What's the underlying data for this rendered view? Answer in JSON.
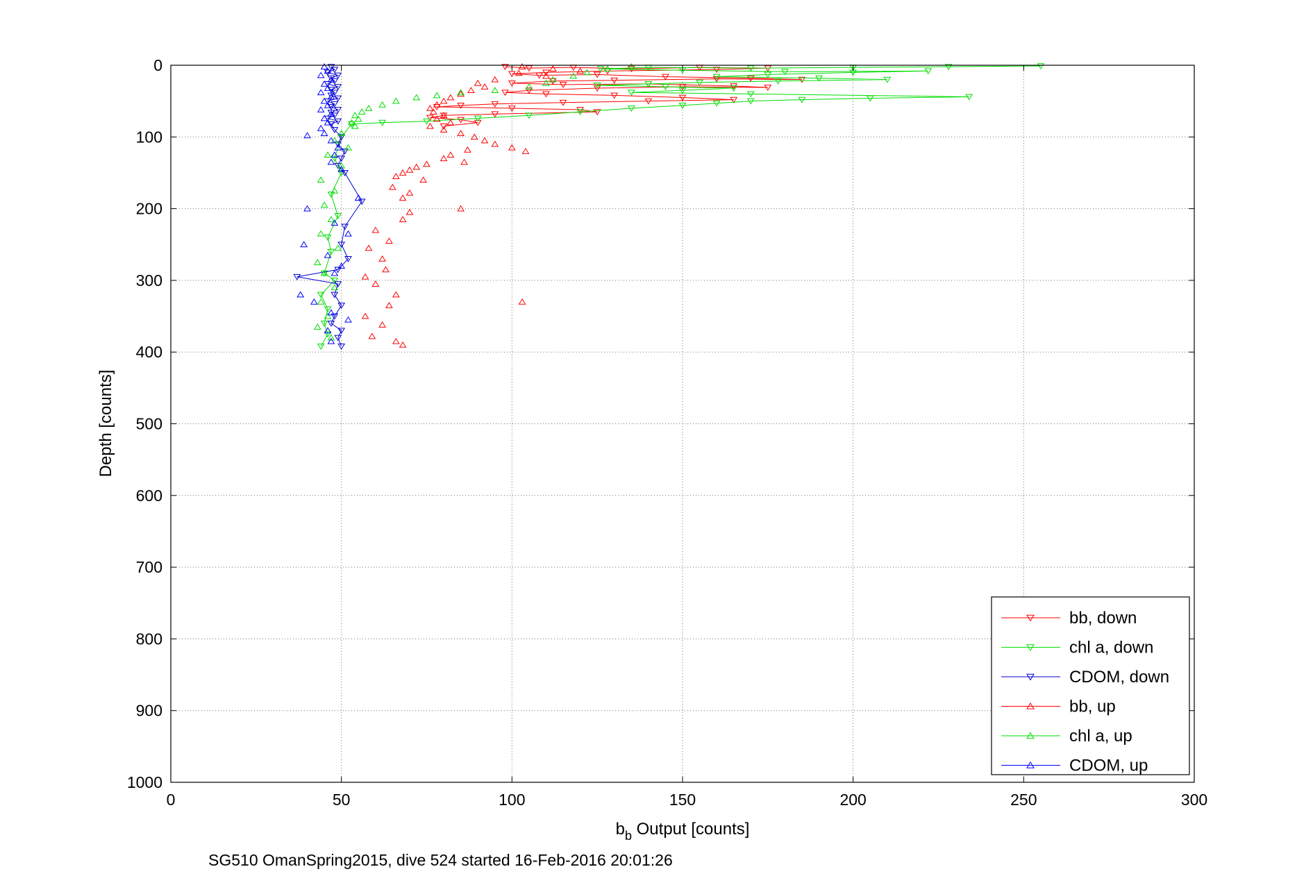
{
  "chart_data": {
    "type": "line",
    "xlabel_main": "b",
    "xlabel_sub": "b",
    "xlabel_rest": " Output [counts]",
    "ylabel": "Depth [counts]",
    "caption": "SG510 OmanSpring2015, dive 524 started 16-Feb-2016 20:01:26",
    "xlim": [
      0,
      300
    ],
    "ylim": [
      0,
      1000
    ],
    "y_reversed": true,
    "grid": true,
    "legend_position": "bottom-right",
    "x_ticks": [
      "0",
      "50",
      "100",
      "150",
      "200",
      "250",
      "300"
    ],
    "y_ticks": [
      "0",
      "100",
      "200",
      "300",
      "400",
      "500",
      "600",
      "700",
      "800",
      "900",
      "1000"
    ],
    "series": [
      {
        "name": "bb, down",
        "color": "#ff0000",
        "marker": "triangle-down",
        "connected": true,
        "points": [
          [
            98,
            2
          ],
          [
            105,
            4
          ],
          [
            118,
            3
          ],
          [
            135,
            5
          ],
          [
            155,
            3
          ],
          [
            175,
            4
          ],
          [
            160,
            6
          ],
          [
            128,
            8
          ],
          [
            110,
            10
          ],
          [
            100,
            12
          ],
          [
            108,
            14
          ],
          [
            125,
            13
          ],
          [
            145,
            16
          ],
          [
            170,
            18
          ],
          [
            185,
            20
          ],
          [
            160,
            19
          ],
          [
            130,
            21
          ],
          [
            112,
            22
          ],
          [
            100,
            25
          ],
          [
            115,
            27
          ],
          [
            140,
            26
          ],
          [
            165,
            29
          ],
          [
            175,
            31
          ],
          [
            150,
            30
          ],
          [
            125,
            32
          ],
          [
            105,
            35
          ],
          [
            98,
            38
          ],
          [
            110,
            40
          ],
          [
            130,
            42
          ],
          [
            150,
            45
          ],
          [
            165,
            48
          ],
          [
            140,
            50
          ],
          [
            115,
            52
          ],
          [
            95,
            54
          ],
          [
            85,
            56
          ],
          [
            78,
            58
          ],
          [
            100,
            60
          ],
          [
            120,
            62
          ],
          [
            125,
            65
          ],
          [
            95,
            68
          ],
          [
            80,
            70
          ],
          [
            76,
            73
          ],
          [
            85,
            76
          ],
          [
            90,
            80
          ],
          [
            80,
            85
          ]
        ]
      },
      {
        "name": "chl a, down",
        "color": "#00dd00",
        "marker": "triangle-down",
        "connected": true,
        "points": [
          [
            255,
            1
          ],
          [
            228,
            2
          ],
          [
            200,
            3
          ],
          [
            170,
            4
          ],
          [
            140,
            3
          ],
          [
            126,
            5
          ],
          [
            150,
            7
          ],
          [
            180,
            9
          ],
          [
            222,
            8
          ],
          [
            200,
            10
          ],
          [
            175,
            13
          ],
          [
            160,
            16
          ],
          [
            190,
            18
          ],
          [
            210,
            20
          ],
          [
            178,
            22
          ],
          [
            155,
            24
          ],
          [
            140,
            26
          ],
          [
            125,
            28
          ],
          [
            145,
            30
          ],
          [
            165,
            32
          ],
          [
            150,
            35
          ],
          [
            135,
            38
          ],
          [
            170,
            40
          ],
          [
            234,
            44
          ],
          [
            205,
            46
          ],
          [
            185,
            48
          ],
          [
            170,
            50
          ],
          [
            160,
            53
          ],
          [
            150,
            56
          ],
          [
            135,
            60
          ],
          [
            120,
            65
          ],
          [
            105,
            70
          ],
          [
            90,
            74
          ],
          [
            75,
            78
          ],
          [
            62,
            80
          ],
          [
            53,
            82
          ],
          [
            50,
            100
          ],
          [
            48,
            130
          ],
          [
            50,
            150
          ],
          [
            47,
            180
          ],
          [
            49,
            210
          ],
          [
            46,
            240
          ],
          [
            47,
            260
          ],
          [
            45,
            290
          ],
          [
            48,
            300
          ],
          [
            44,
            320
          ],
          [
            46,
            340
          ],
          [
            45,
            360
          ],
          [
            46,
            375
          ],
          [
            44,
            392
          ]
        ]
      },
      {
        "name": "CDOM, down",
        "color": "#0000cc",
        "marker": "triangle-down",
        "connected": true,
        "points": [
          [
            47,
            2
          ],
          [
            48,
            6
          ],
          [
            46,
            10
          ],
          [
            49,
            14
          ],
          [
            47,
            18
          ],
          [
            48,
            22
          ],
          [
            46,
            26
          ],
          [
            49,
            30
          ],
          [
            47,
            34
          ],
          [
            48,
            38
          ],
          [
            47,
            42
          ],
          [
            49,
            46
          ],
          [
            46,
            50
          ],
          [
            48,
            54
          ],
          [
            47,
            58
          ],
          [
            49,
            62
          ],
          [
            47,
            66
          ],
          [
            48,
            70
          ],
          [
            46,
            74
          ],
          [
            49,
            78
          ],
          [
            47,
            82
          ],
          [
            48,
            90
          ],
          [
            50,
            100
          ],
          [
            49,
            110
          ],
          [
            51,
            120
          ],
          [
            50,
            130
          ],
          [
            49,
            140
          ],
          [
            51,
            150
          ],
          [
            56,
            190
          ],
          [
            51,
            225
          ],
          [
            50,
            250
          ],
          [
            52,
            270
          ],
          [
            49,
            285
          ],
          [
            37,
            295
          ],
          [
            49,
            305
          ],
          [
            48,
            320
          ],
          [
            50,
            335
          ],
          [
            48,
            350
          ],
          [
            47,
            360
          ],
          [
            50,
            370
          ],
          [
            49,
            380
          ],
          [
            50,
            392
          ]
        ]
      },
      {
        "name": "bb, up",
        "color": "#ff0000",
        "marker": "triangle-up",
        "connected": false,
        "points": [
          [
            103,
            2
          ],
          [
            112,
            5
          ],
          [
            120,
            8
          ],
          [
            102,
            11
          ],
          [
            110,
            15
          ],
          [
            95,
            20
          ],
          [
            90,
            25
          ],
          [
            92,
            30
          ],
          [
            88,
            35
          ],
          [
            85,
            40
          ],
          [
            82,
            45
          ],
          [
            80,
            50
          ],
          [
            78,
            55
          ],
          [
            76,
            60
          ],
          [
            77,
            65
          ],
          [
            80,
            70
          ],
          [
            78,
            75
          ],
          [
            82,
            80
          ],
          [
            76,
            85
          ],
          [
            80,
            90
          ],
          [
            85,
            95
          ],
          [
            89,
            100
          ],
          [
            92,
            105
          ],
          [
            95,
            110
          ],
          [
            100,
            115
          ],
          [
            104,
            120
          ],
          [
            87,
            118
          ],
          [
            82,
            125
          ],
          [
            80,
            130
          ],
          [
            86,
            135
          ],
          [
            75,
            138
          ],
          [
            72,
            142
          ],
          [
            70,
            146
          ],
          [
            68,
            150
          ],
          [
            66,
            155
          ],
          [
            74,
            160
          ],
          [
            65,
            170
          ],
          [
            70,
            178
          ],
          [
            68,
            185
          ],
          [
            85,
            200
          ],
          [
            70,
            205
          ],
          [
            68,
            215
          ],
          [
            60,
            230
          ],
          [
            64,
            245
          ],
          [
            58,
            255
          ],
          [
            62,
            270
          ],
          [
            63,
            285
          ],
          [
            57,
            295
          ],
          [
            60,
            305
          ],
          [
            66,
            320
          ],
          [
            64,
            335
          ],
          [
            103,
            330
          ],
          [
            57,
            350
          ],
          [
            62,
            362
          ],
          [
            59,
            378
          ],
          [
            66,
            385
          ],
          [
            68,
            390
          ]
        ]
      },
      {
        "name": "chl a, up",
        "color": "#00dd00",
        "marker": "triangle-up",
        "connected": false,
        "points": [
          [
            135,
            2
          ],
          [
            128,
            5
          ],
          [
            122,
            10
          ],
          [
            118,
            15
          ],
          [
            112,
            20
          ],
          [
            110,
            25
          ],
          [
            105,
            30
          ],
          [
            95,
            35
          ],
          [
            85,
            38
          ],
          [
            78,
            42
          ],
          [
            72,
            45
          ],
          [
            66,
            50
          ],
          [
            62,
            55
          ],
          [
            58,
            60
          ],
          [
            56,
            65
          ],
          [
            54,
            70
          ],
          [
            55,
            75
          ],
          [
            53,
            80
          ],
          [
            54,
            85
          ],
          [
            50,
            95
          ],
          [
            48,
            105
          ],
          [
            52,
            115
          ],
          [
            46,
            125
          ],
          [
            50,
            140
          ],
          [
            44,
            160
          ],
          [
            48,
            175
          ],
          [
            45,
            195
          ],
          [
            47,
            215
          ],
          [
            44,
            235
          ],
          [
            49,
            255
          ],
          [
            43,
            275
          ],
          [
            45,
            290
          ],
          [
            48,
            310
          ],
          [
            44,
            330
          ],
          [
            46,
            350
          ],
          [
            43,
            365
          ],
          [
            47,
            380
          ]
        ]
      },
      {
        "name": "CDOM, up",
        "color": "#0000ff",
        "marker": "triangle-up",
        "connected": false,
        "points": [
          [
            45,
            2
          ],
          [
            46,
            8
          ],
          [
            44,
            14
          ],
          [
            47,
            20
          ],
          [
            45,
            26
          ],
          [
            46,
            32
          ],
          [
            44,
            38
          ],
          [
            47,
            44
          ],
          [
            45,
            50
          ],
          [
            46,
            56
          ],
          [
            44,
            62
          ],
          [
            47,
            68
          ],
          [
            45,
            74
          ],
          [
            46,
            80
          ],
          [
            44,
            88
          ],
          [
            45,
            95
          ],
          [
            40,
            98
          ],
          [
            47,
            105
          ],
          [
            49,
            115
          ],
          [
            48,
            125
          ],
          [
            47,
            135
          ],
          [
            50,
            145
          ],
          [
            55,
            185
          ],
          [
            40,
            200
          ],
          [
            48,
            220
          ],
          [
            52,
            235
          ],
          [
            39,
            250
          ],
          [
            46,
            265
          ],
          [
            50,
            280
          ],
          [
            48,
            290
          ],
          [
            38,
            320
          ],
          [
            42,
            330
          ],
          [
            47,
            345
          ],
          [
            52,
            355
          ],
          [
            46,
            370
          ],
          [
            47,
            385
          ]
        ]
      }
    ]
  }
}
